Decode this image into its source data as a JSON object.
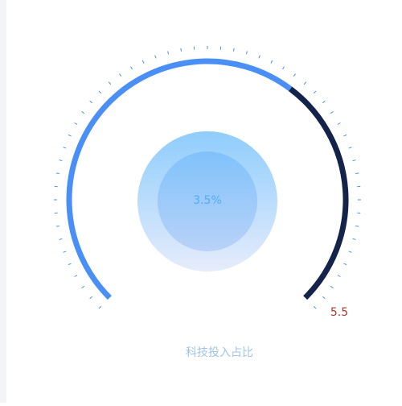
{
  "chart_data": {
    "type": "gauge",
    "title": "科技投入占比",
    "value": 3.5,
    "value_label": "3.5%",
    "range": [
      0,
      5.5
    ],
    "color": "#4a8ff5",
    "track_color": "#13234a"
  }
}
